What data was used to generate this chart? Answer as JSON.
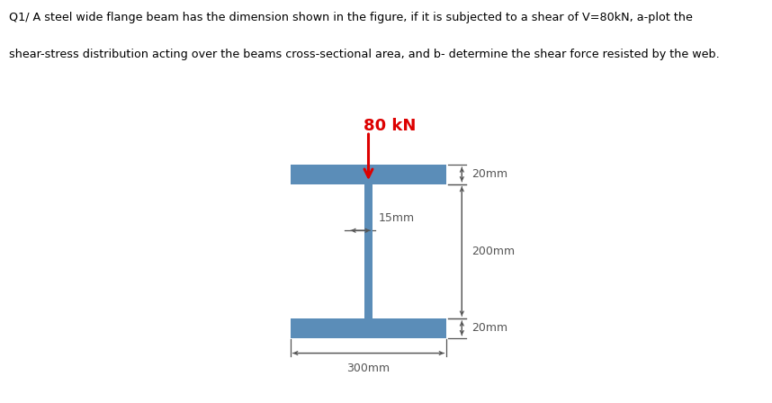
{
  "title_line1": "Q1/ A steel wide flange beam has the dimension shown in the figure, if it is subjected to a shear of V=80kN, a-plot the",
  "title_line2": "shear-stress distribution acting over the beams cross-sectional area, and b- determine the shear force resisted by the web.",
  "load_label": "80 kN",
  "load_label_color": "#dd0000",
  "beam_color": "#5b8db8",
  "bg_color": "#ffffff",
  "dim_15mm": "15mm",
  "dim_20mm_top": "20mm",
  "dim_200mm": "200mm",
  "dim_20mm_bot": "20mm",
  "dim_300mm": "300mm",
  "text_color": "#000000",
  "dim_color": "#555555"
}
